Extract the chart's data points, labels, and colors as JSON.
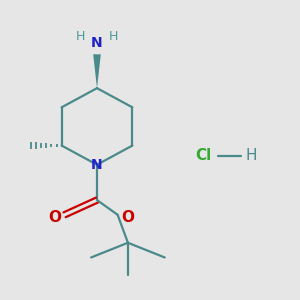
{
  "bg_color": "#e6e6e6",
  "bond_color": "#4a8a8a",
  "N_color": "#2222cc",
  "O_color": "#cc0000",
  "H_color": "#4a9a9a",
  "Cl_color": "#33aa33",
  "line_width": 1.6,
  "figsize": [
    3.0,
    3.0
  ],
  "dpi": 100,
  "xlim": [
    0,
    10
  ],
  "ylim": [
    0,
    10
  ]
}
